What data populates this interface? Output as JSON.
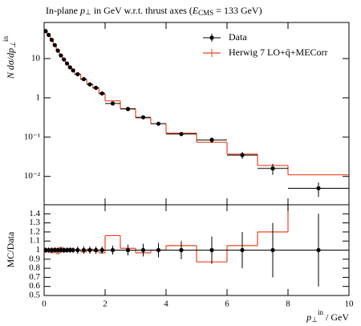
{
  "chart_data": [
    {
      "type": "histogram",
      "title": [
        "In-plane ",
        "p",
        "⊥",
        " in GeV w.r.t. thrust axes (",
        "E",
        "CMS",
        " = 133 GeV)"
      ],
      "y_label": [
        "N dσ/dp",
        "⊥",
        "in"
      ],
      "bins": [
        0,
        0.1,
        0.2,
        0.3,
        0.4,
        0.5,
        0.6,
        0.7,
        0.8,
        0.9,
        1.0,
        1.2,
        1.4,
        1.6,
        1.8,
        2.0,
        2.5,
        3,
        3.5,
        4,
        5,
        6,
        7,
        8,
        10
      ],
      "series": [
        {
          "name": "Data",
          "color": "#000000",
          "marker": "point",
          "values": [
            50,
            40,
            30,
            22,
            16,
            12,
            9.5,
            7.5,
            6,
            5,
            4,
            3,
            2.2,
            1.8,
            1.3,
            0.72,
            0.52,
            0.32,
            0.22,
            0.12,
            0.085,
            0.035,
            0.016,
            0.005
          ],
          "errors": [
            1.5,
            1.2,
            0.9,
            0.66,
            0.48,
            0.36,
            0.29,
            0.23,
            0.18,
            0.15,
            0.16,
            0.12,
            0.088,
            0.072,
            0.052,
            0.036,
            0.031,
            0.022,
            0.018,
            0.012,
            0.013,
            0.007,
            0.005,
            0.002
          ]
        },
        {
          "name": "Herwig 7 LO+q̄+MECorr",
          "color": "#ee4422",
          "marker": "step",
          "values": [
            49,
            40,
            29,
            22.4,
            15.4,
            12.4,
            9.3,
            7.5,
            6.1,
            4.95,
            4.0,
            2.94,
            2.22,
            1.78,
            1.26,
            0.84,
            0.53,
            0.31,
            0.22,
            0.126,
            0.074,
            0.037,
            0.019,
            0.011
          ]
        }
      ],
      "xlim": [
        0,
        10
      ],
      "ylim": [
        0.0019,
        83
      ],
      "log_y": true,
      "yticks": [
        {
          "value": 0.01,
          "label": "10⁻²"
        },
        {
          "value": 0.1,
          "label": "10⁻¹"
        },
        1,
        10
      ],
      "legend": "upper right"
    },
    {
      "type": "ratio",
      "y_label": "MC/Data",
      "x_label": [
        "p",
        "⊥",
        "in",
        " / GeV"
      ],
      "series": [
        {
          "color": "#000000",
          "marker": "point",
          "values": [
            1,
            1,
            1,
            1,
            1,
            1,
            1,
            1,
            1,
            1,
            1,
            1,
            1,
            1,
            1,
            1,
            1,
            1,
            1,
            1,
            1,
            1,
            1,
            1
          ],
          "errors": [
            0.03,
            0.03,
            0.03,
            0.03,
            0.03,
            0.03,
            0.03,
            0.03,
            0.03,
            0.03,
            0.04,
            0.04,
            0.04,
            0.04,
            0.04,
            0.05,
            0.06,
            0.07,
            0.08,
            0.1,
            0.15,
            0.2,
            0.3,
            0.4
          ]
        },
        {
          "color": "#ee4422",
          "marker": "step",
          "values": [
            0.98,
            1.0,
            0.97,
            1.02,
            0.96,
            1.03,
            0.98,
            1.0,
            1.02,
            0.99,
            1.0,
            0.98,
            1.01,
            0.99,
            0.97,
            1.16,
            1.02,
            0.97,
            1.0,
            1.05,
            0.87,
            1.05,
            1.2,
            2.2
          ]
        }
      ],
      "xlim": [
        0,
        10
      ],
      "xticks": [
        0,
        2,
        4,
        6,
        8,
        10
      ],
      "ylim": [
        0.5,
        1.5
      ],
      "yticks": [
        0.5,
        0.6,
        0.7,
        0.8,
        0.9,
        1,
        1.1,
        1.2,
        1.3,
        1.4
      ]
    }
  ]
}
